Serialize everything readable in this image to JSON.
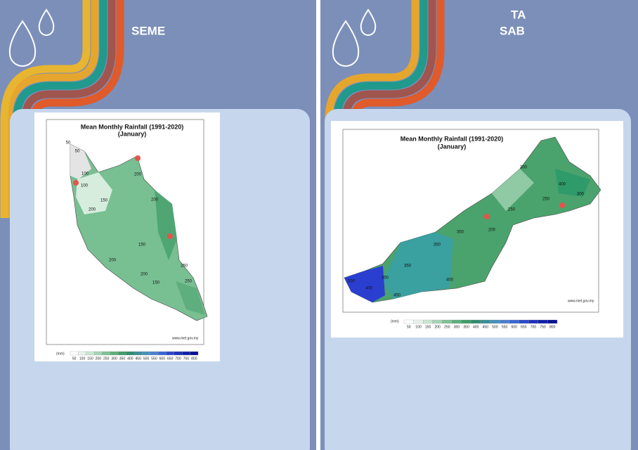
{
  "panels": [
    {
      "heading_lines": [
        "SEME"
      ],
      "map": {
        "title": "Mean Monthly Rainfall (1991-2020)",
        "subtitle": "(January)",
        "source": "www.met.gov.my",
        "legend_unit": "(mm)",
        "legend_labels": [
          "50",
          "100",
          "150",
          "200",
          "250",
          "300",
          "350",
          "400",
          "450",
          "500",
          "550",
          "600",
          "650",
          "700",
          "750",
          "800"
        ],
        "contour_labels": [
          "50",
          "50",
          "100",
          "100",
          "150",
          "200",
          "200",
          "150",
          "200",
          "200",
          "150",
          "250",
          "250",
          "200"
        ]
      }
    },
    {
      "heading_lines": [
        "TA",
        "SAB"
      ],
      "map": {
        "title": "Mean Monthly Rainfall (1991-2020)",
        "subtitle": "(January)",
        "source": "www.met.gov.my",
        "legend_unit": "(mm)",
        "legend_labels": [
          "50",
          "100",
          "150",
          "200",
          "250",
          "300",
          "350",
          "400",
          "450",
          "500",
          "550",
          "600",
          "650",
          "700",
          "750",
          "800"
        ],
        "contour_labels": [
          "300",
          "400",
          "300",
          "250",
          "250",
          "200",
          "350",
          "350",
          "400",
          "350",
          "450",
          "350",
          "400",
          "500"
        ]
      }
    }
  ]
}
